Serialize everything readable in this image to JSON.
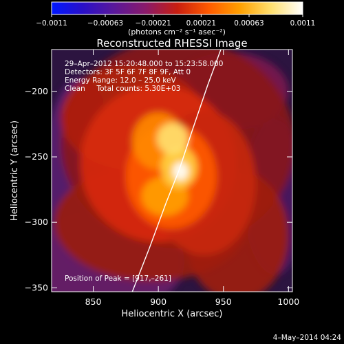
{
  "chart_data": {
    "type": "heatmap",
    "title": "Reconstructed RHESSI Image",
    "colorbar": {
      "tick_labels": [
        "−0.0011",
        "−0.00063",
        "−0.00021",
        "0.00021",
        "0.00063",
        "0.0011"
      ],
      "range": [
        -0.0011,
        0.0011
      ],
      "unit_label": "(photons cm⁻² s⁻¹ asec⁻²)",
      "colors": [
        "#0018ff",
        "#2a10c8",
        "#5a189a",
        "#8a1a6a",
        "#c81e10",
        "#ff5a00",
        "#ffa000",
        "#ffe070",
        "#ffffff"
      ]
    },
    "xlabel": "Heliocentric X (arcsec)",
    "ylabel": "Heliocentric Y (arcsec)",
    "xlim": [
      818,
      1003
    ],
    "ylim": [
      -353,
      -168
    ],
    "xticks": [
      850,
      900,
      950,
      1000
    ],
    "yticks": [
      -200,
      -250,
      -300,
      -350
    ],
    "info_lines": [
      "29–Apr–2012 15:20:48.000 to 15:23:58.000",
      "Detectors: 3F 5F 6F 7F 8F 9F, Att 0",
      "Energy Range: 12.0 – 25.0 keV",
      "Clean     Total counts: 5.30E+03"
    ],
    "peak_label": "Position of Peak = [917,–261]",
    "peak": [
      917,
      -261
    ],
    "limb_points": [
      [
        880,
        -353
      ],
      [
        893,
        -320
      ],
      [
        906,
        -285
      ],
      [
        916,
        -260
      ],
      [
        926,
        -230
      ],
      [
        938,
        -195
      ],
      [
        948,
        -168
      ]
    ]
  },
  "footer": {
    "date": "4–May–2014 04:24"
  }
}
